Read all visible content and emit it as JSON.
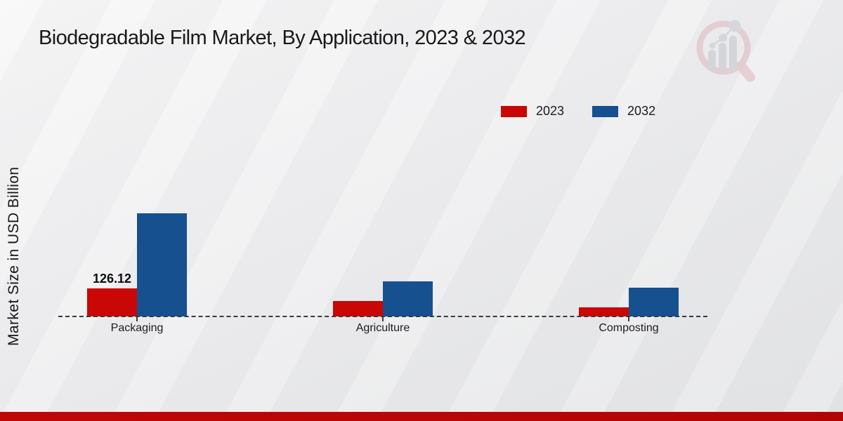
{
  "page": {
    "title": "Biodegradable Film Market, By Application, 2023 & 2032",
    "y_axis_label": "Market Size in USD Billion"
  },
  "logo": {
    "name": "market-research-future-watermark"
  },
  "colors": {
    "series_2023": "#c90707",
    "series_2032": "#16508f",
    "footer_bar": "#b90505",
    "baseline": "#3a3a3a",
    "title_text": "#191919"
  },
  "chart_data": {
    "type": "bar",
    "title": "Biodegradable Film Market, By Application, 2023 & 2032",
    "ylabel": "Market Size in USD Billion",
    "xlabel": "",
    "categories": [
      "Packaging",
      "Agriculture",
      "Composting"
    ],
    "series": [
      {
        "name": "2023",
        "color": "#c90707",
        "values": [
          126.12,
          68,
          40
        ],
        "data_labels": [
          "126.12",
          "",
          ""
        ]
      },
      {
        "name": "2032",
        "color": "#16508f",
        "values": [
          460,
          157,
          128
        ],
        "data_labels": [
          "",
          "",
          ""
        ]
      }
    ],
    "ylim": [
      0,
      480
    ],
    "grid": false,
    "legend_position": "top-right",
    "baseline_style": "dashed",
    "y_axis_ticks_shown": false
  }
}
